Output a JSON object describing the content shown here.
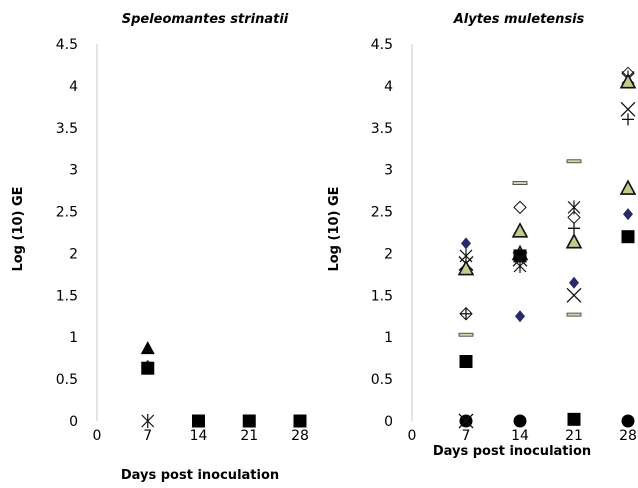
{
  "chart_data": [
    {
      "type": "scatter",
      "title": "Speleomantes strinatii",
      "xlabel": "Days post inoculation",
      "ylabel": "Log (10) GE",
      "x_ticks": [
        "0",
        "7",
        "14",
        "21",
        "28"
      ],
      "y_ticks": [
        "0",
        "0.5",
        "1",
        "1.5",
        "2",
        "2.5",
        "3",
        "3.5",
        "4",
        "4.5"
      ],
      "xlim": [
        0,
        28
      ],
      "ylim": [
        0,
        4.5
      ],
      "grid": false,
      "legend": "none",
      "points": [
        {
          "x": 7,
          "y": 0.87,
          "marker": "triangle-black"
        },
        {
          "x": 7,
          "y": 0.66,
          "marker": "diamond-dark"
        },
        {
          "x": 7,
          "y": 0.63,
          "marker": "square-black"
        },
        {
          "x": 7,
          "y": 0,
          "marker": "asterisk"
        },
        {
          "x": 14,
          "y": 0,
          "marker": "square-black"
        },
        {
          "x": 21,
          "y": 0,
          "marker": "square-black"
        },
        {
          "x": 28,
          "y": 0,
          "marker": "square-black"
        }
      ]
    },
    {
      "type": "scatter",
      "title": "Alytes muletensis",
      "xlabel": "Days post inoculation",
      "ylabel": "Log (10) GE",
      "x_ticks": [
        "0",
        "7",
        "14",
        "21",
        "28"
      ],
      "y_ticks": [
        "0",
        "0.5",
        "1",
        "1.5",
        "2",
        "2.5",
        "3",
        "3.5",
        "4",
        "4.5"
      ],
      "xlim": [
        0,
        28
      ],
      "ylim": [
        0,
        4.5
      ],
      "grid": false,
      "legend": "none",
      "points": [
        {
          "x": 7,
          "y": 2.12,
          "marker": "diamond-dark"
        },
        {
          "x": 7,
          "y": 1.97,
          "marker": "asterisk"
        },
        {
          "x": 7,
          "y": 1.88,
          "marker": "x"
        },
        {
          "x": 7,
          "y": 1.82,
          "marker": "triangle-olive"
        },
        {
          "x": 7,
          "y": 1.28,
          "marker": "diamond-open"
        },
        {
          "x": 7,
          "y": 1.28,
          "marker": "plus"
        },
        {
          "x": 7,
          "y": 1.03,
          "marker": "dash"
        },
        {
          "x": 7,
          "y": 0.71,
          "marker": "square-black"
        },
        {
          "x": 7,
          "y": 0,
          "marker": "circle-black"
        },
        {
          "x": 7,
          "y": 0,
          "marker": "x"
        },
        {
          "x": 14,
          "y": 2.84,
          "marker": "dash"
        },
        {
          "x": 14,
          "y": 2.55,
          "marker": "diamond-open"
        },
        {
          "x": 14,
          "y": 2.27,
          "marker": "triangle-olive"
        },
        {
          "x": 14,
          "y": 2.0,
          "marker": "triangle-olive"
        },
        {
          "x": 14,
          "y": 1.97,
          "marker": "square-black"
        },
        {
          "x": 14,
          "y": 1.93,
          "marker": "x"
        },
        {
          "x": 14,
          "y": 1.85,
          "marker": "asterisk"
        },
        {
          "x": 14,
          "y": 1.25,
          "marker": "diamond-dark"
        },
        {
          "x": 14,
          "y": 0,
          "marker": "circle-black"
        },
        {
          "x": 21,
          "y": 3.1,
          "marker": "dash"
        },
        {
          "x": 21,
          "y": 2.55,
          "marker": "asterisk"
        },
        {
          "x": 21,
          "y": 2.43,
          "marker": "diamond-open"
        },
        {
          "x": 21,
          "y": 2.3,
          "marker": "plus"
        },
        {
          "x": 21,
          "y": 2.14,
          "marker": "triangle-olive"
        },
        {
          "x": 21,
          "y": 1.65,
          "marker": "diamond-dark"
        },
        {
          "x": 21,
          "y": 1.5,
          "marker": "x"
        },
        {
          "x": 21,
          "y": 1.27,
          "marker": "dash"
        },
        {
          "x": 21,
          "y": 0.02,
          "marker": "square-black"
        },
        {
          "x": 28,
          "y": 4.15,
          "marker": "diamond-open"
        },
        {
          "x": 28,
          "y": 4.1,
          "marker": "asterisk"
        },
        {
          "x": 28,
          "y": 4.05,
          "marker": "triangle-olive"
        },
        {
          "x": 28,
          "y": 3.72,
          "marker": "x"
        },
        {
          "x": 28,
          "y": 3.6,
          "marker": "plus"
        },
        {
          "x": 28,
          "y": 2.78,
          "marker": "triangle-olive"
        },
        {
          "x": 28,
          "y": 2.47,
          "marker": "diamond-dark"
        },
        {
          "x": 28,
          "y": 2.2,
          "marker": "square-black"
        },
        {
          "x": 28,
          "y": 0,
          "marker": "circle-black"
        }
      ]
    }
  ],
  "colors": {
    "axis": "#c8c8c8",
    "marker_black": "#000000",
    "marker_olive": "#c5c98a",
    "marker_diamond_dark": "#2a2a6a",
    "marker_dash": "#d8d0a8"
  }
}
